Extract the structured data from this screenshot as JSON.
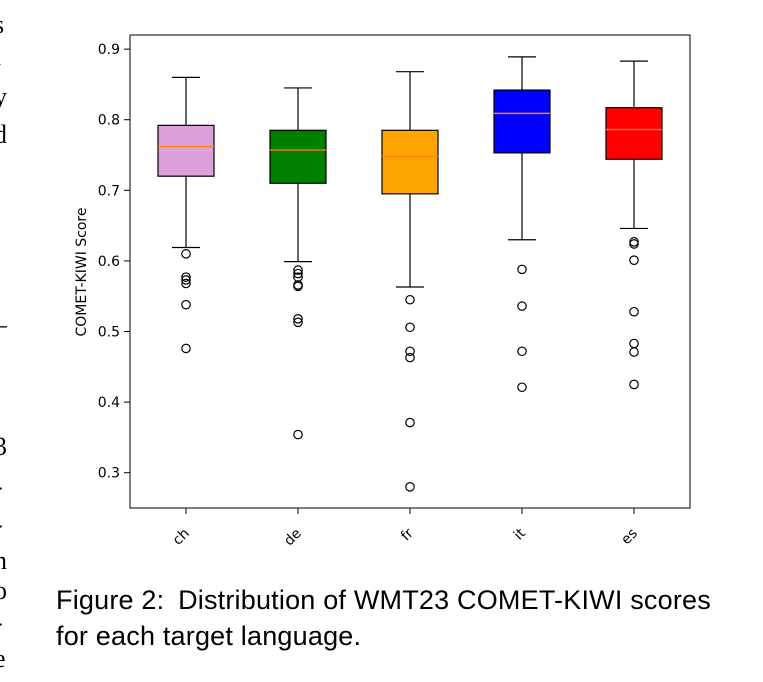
{
  "caption": {
    "label": "Figure 2:",
    "text": "Distribution of WMT23 COMET-KIWI scores for each target language."
  },
  "page_edge_glyphs": [
    "s",
    "l",
    "y",
    "d",
    "–",
    ".",
    "3",
    "-",
    "-",
    "n",
    "o",
    "-",
    "e"
  ],
  "chart_data": {
    "type": "box",
    "ylabel": "COMET-KIWI Score",
    "xlabel": "",
    "ylim": [
      0.25,
      0.92
    ],
    "yticks": [
      0.3,
      0.4,
      0.5,
      0.6,
      0.7,
      0.8,
      0.9
    ],
    "ytick_labels": [
      "0.3",
      "0.4",
      "0.5",
      "0.6",
      "0.7",
      "0.8",
      "0.9"
    ],
    "grid": false,
    "median_color": "#ff7f0e",
    "categories": [
      "ch",
      "de",
      "fr",
      "it",
      "es"
    ],
    "boxes": [
      {
        "category": "ch",
        "color": "#dda0dd",
        "whisker_low": 0.619,
        "q1": 0.72,
        "median": 0.762,
        "q3": 0.792,
        "whisker_high": 0.86,
        "outliers": [
          0.61,
          0.577,
          0.573,
          0.568,
          0.538,
          0.476
        ]
      },
      {
        "category": "de",
        "color": "#008000",
        "whisker_low": 0.599,
        "q1": 0.71,
        "median": 0.757,
        "q3": 0.785,
        "whisker_high": 0.845,
        "outliers": [
          0.587,
          0.582,
          0.577,
          0.566,
          0.564,
          0.518,
          0.513,
          0.354
        ]
      },
      {
        "category": "fr",
        "color": "#ffa500",
        "whisker_low": 0.563,
        "q1": 0.695,
        "median": 0.748,
        "q3": 0.785,
        "whisker_high": 0.868,
        "outliers": [
          0.545,
          0.506,
          0.472,
          0.463,
          0.371,
          0.28
        ]
      },
      {
        "category": "it",
        "color": "#0000ff",
        "whisker_low": 0.63,
        "q1": 0.753,
        "median": 0.809,
        "q3": 0.842,
        "whisker_high": 0.889,
        "outliers": [
          0.588,
          0.536,
          0.472,
          0.421
        ]
      },
      {
        "category": "es",
        "color": "#ff0000",
        "whisker_low": 0.646,
        "q1": 0.744,
        "median": 0.786,
        "q3": 0.817,
        "whisker_high": 0.883,
        "outliers": [
          0.627,
          0.624,
          0.601,
          0.528,
          0.483,
          0.471,
          0.425
        ]
      }
    ]
  }
}
